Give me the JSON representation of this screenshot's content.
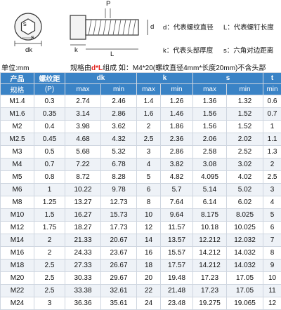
{
  "diagram": {
    "labels": {
      "d": "d",
      "dk": "dk",
      "s": "s",
      "k": "k",
      "l": "L",
      "p": "P"
    },
    "legend": [
      {
        "key": "d",
        "text": "d：代表螺纹直径"
      },
      {
        "key": "l",
        "text": "L：代表螺钉长度"
      },
      {
        "key": "k",
        "text": "k：代表头部厚度"
      },
      {
        "key": "s",
        "text": "s：六角对边距离"
      }
    ]
  },
  "unit": "单位:mm",
  "note": {
    "prefix": "规格由",
    "highlight": "d*L",
    "suffix": "组成 如：M4*20(螺纹直径4mm*长度20mm)不含头部"
  },
  "table": {
    "header_top": [
      "产品",
      "螺纹距",
      "dk",
      "k",
      "s",
      "t"
    ],
    "header_sub": [
      "规格",
      "(P)",
      "max",
      "min",
      "max",
      "min",
      "max",
      "min",
      "min"
    ],
    "rows": [
      [
        "M1.4",
        "0.3",
        "2.74",
        "2.46",
        "1.4",
        "1.26",
        "1.36",
        "1.32",
        "0.6"
      ],
      [
        "M1.6",
        "0.35",
        "3.14",
        "2.86",
        "1.6",
        "1.46",
        "1.56",
        "1.52",
        "0.7"
      ],
      [
        "M2",
        "0.4",
        "3.98",
        "3.62",
        "2",
        "1.86",
        "1.56",
        "1.52",
        "1"
      ],
      [
        "M2.5",
        "0.45",
        "4.68",
        "4.32",
        "2.5",
        "2.36",
        "2.06",
        "2.02",
        "1.1"
      ],
      [
        "M3",
        "0.5",
        "5.68",
        "5.32",
        "3",
        "2.86",
        "2.58",
        "2.52",
        "1.3"
      ],
      [
        "M4",
        "0.7",
        "7.22",
        "6.78",
        "4",
        "3.82",
        "3.08",
        "3.02",
        "2"
      ],
      [
        "M5",
        "0.8",
        "8.72",
        "8.28",
        "5",
        "4.82",
        "4.095",
        "4.02",
        "2.5"
      ],
      [
        "M6",
        "1",
        "10.22",
        "9.78",
        "6",
        "5.7",
        "5.14",
        "5.02",
        "3"
      ],
      [
        "M8",
        "1.25",
        "13.27",
        "12.73",
        "8",
        "7.64",
        "6.14",
        "6.02",
        "4"
      ],
      [
        "M10",
        "1.5",
        "16.27",
        "15.73",
        "10",
        "9.64",
        "8.175",
        "8.025",
        "5"
      ],
      [
        "M12",
        "1.75",
        "18.27",
        "17.73",
        "12",
        "11.57",
        "10.18",
        "10.025",
        "6"
      ],
      [
        "M14",
        "2",
        "21.33",
        "20.67",
        "14",
        "13.57",
        "12.212",
        "12.032",
        "7"
      ],
      [
        "M16",
        "2",
        "24.33",
        "23.67",
        "16",
        "15.57",
        "14.212",
        "14.032",
        "8"
      ],
      [
        "M18",
        "2.5",
        "27.33",
        "26.67",
        "18",
        "17.57",
        "14.212",
        "14.032",
        "9"
      ],
      [
        "M20",
        "2.5",
        "30.33",
        "29.67",
        "20",
        "19.48",
        "17.23",
        "17.05",
        "10"
      ],
      [
        "M22",
        "2.5",
        "33.38",
        "32.61",
        "22",
        "21.48",
        "17.23",
        "17.05",
        "11"
      ],
      [
        "M24",
        "3",
        "36.36",
        "35.61",
        "24",
        "23.48",
        "19.275",
        "19.065",
        "12"
      ]
    ]
  }
}
